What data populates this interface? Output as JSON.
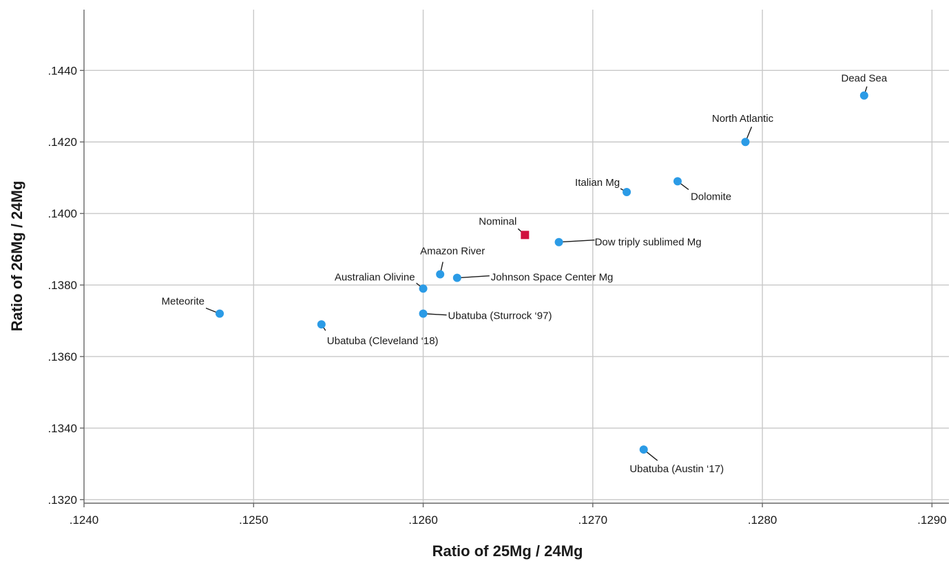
{
  "chart_data": {
    "type": "scatter",
    "xlabel": "Ratio of 25Mg / 24Mg",
    "ylabel": "Ratio of 26Mg / 24Mg",
    "xlim": [
      0.124,
      0.1291
    ],
    "ylim": [
      0.1319,
      0.1457
    ],
    "x_ticks": [
      ".1240",
      ".1250",
      ".1260",
      ".1270",
      ".1280",
      ".1290"
    ],
    "y_ticks": [
      ".1320",
      ".1340",
      ".1360",
      ".1380",
      ".1400",
      ".1420",
      ".1440"
    ],
    "grid": true,
    "colors": {
      "sample": "#2b9be6",
      "nominal": "#d0103e"
    },
    "points": [
      {
        "label": "Dead Sea",
        "x": 0.1286,
        "y": 0.1433,
        "marker": "circle"
      },
      {
        "label": "North Atlantic",
        "x": 0.1279,
        "y": 0.142,
        "marker": "circle"
      },
      {
        "label": "Italian Mg",
        "x": 0.1272,
        "y": 0.1406,
        "marker": "circle"
      },
      {
        "label": "Dolomite",
        "x": 0.1275,
        "y": 0.1409,
        "marker": "circle"
      },
      {
        "label": "Nominal",
        "x": 0.1266,
        "y": 0.1394,
        "marker": "square"
      },
      {
        "label": "Dow triply sublimed Mg",
        "x": 0.1268,
        "y": 0.1392,
        "marker": "circle"
      },
      {
        "label": "Amazon River",
        "x": 0.1261,
        "y": 0.1383,
        "marker": "circle"
      },
      {
        "label": "Johnson Space Center Mg",
        "x": 0.1262,
        "y": 0.1382,
        "marker": "circle"
      },
      {
        "label": "Australian Olivine",
        "x": 0.126,
        "y": 0.1379,
        "marker": "circle"
      },
      {
        "label": "Meteorite",
        "x": 0.1248,
        "y": 0.1372,
        "marker": "circle"
      },
      {
        "label": "Ubatuba (Sturrock ‘97)",
        "x": 0.126,
        "y": 0.1372,
        "marker": "circle"
      },
      {
        "label": "Ubatuba (Cleveland ‘18)",
        "x": 0.1254,
        "y": 0.1369,
        "marker": "circle"
      },
      {
        "label": "Ubatuba (Austin ‘17)",
        "x": 0.1273,
        "y": 0.1334,
        "marker": "circle"
      }
    ]
  }
}
